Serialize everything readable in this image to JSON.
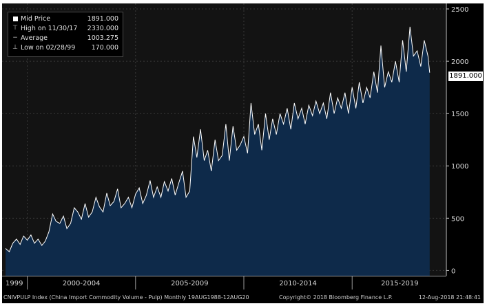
{
  "legend": {
    "rows": [
      {
        "icon": "square-swatch",
        "label": "Mid Price",
        "value": "1891.000"
      },
      {
        "icon": "high-marker",
        "label": "High on 11/30/17",
        "value": "2330.000"
      },
      {
        "icon": "average-marker",
        "label": "Average",
        "value": "1003.275"
      },
      {
        "icon": "low-marker",
        "label": "Low on 02/28/99",
        "value": "170.000"
      }
    ]
  },
  "last_price_tag": "1891.000",
  "footer": {
    "left": "CNIVPULP Index (China Import Commodity Volume - Pulp)  Monthly 19AUG1988-12AUG20",
    "center": "Copyright© 2018 Bloomberg Finance L.P.",
    "right": "12-Aug-2018 21:48:41"
  },
  "colors": {
    "area_fill": "#0e2a4a",
    "line": "#ffffff",
    "background": "#131313",
    "grid": "#3a3a3a"
  },
  "chart_data": {
    "type": "area",
    "title": "",
    "xlabel": "",
    "ylabel": "",
    "ylim": [
      -50,
      2500
    ],
    "xlim": [
      1998.9,
      2019.35
    ],
    "y_ticks": [
      0,
      500,
      1000,
      1500,
      2000,
      2500
    ],
    "y_tick_labels": [
      "0",
      "500",
      "1000",
      "1500",
      "2000",
      "2500"
    ],
    "x_tick_labels": [
      {
        "label": "1999",
        "x": 1999.4
      },
      {
        "label": "2000-2004",
        "x": 2002.5
      },
      {
        "label": "2005-2009",
        "x": 2007.5
      },
      {
        "label": "2010-2014",
        "x": 2012.5
      },
      {
        "label": "2015-2019",
        "x": 2017.2
      }
    ],
    "x_separators": [
      2000,
      2005,
      2010,
      2015
    ],
    "grid": true,
    "legend_position": "top-left",
    "series": [
      {
        "name": "Mid Price",
        "x": [
          1999.0,
          1999.17,
          1999.33,
          1999.5,
          1999.67,
          1999.83,
          2000.0,
          2000.17,
          2000.33,
          2000.5,
          2000.67,
          2000.83,
          2001.0,
          2001.17,
          2001.33,
          2001.5,
          2001.67,
          2001.83,
          2002.0,
          2002.17,
          2002.33,
          2002.5,
          2002.67,
          2002.83,
          2003.0,
          2003.17,
          2003.33,
          2003.5,
          2003.67,
          2003.83,
          2004.0,
          2004.17,
          2004.33,
          2004.5,
          2004.67,
          2004.83,
          2005.0,
          2005.17,
          2005.33,
          2005.5,
          2005.67,
          2005.83,
          2006.0,
          2006.17,
          2006.33,
          2006.5,
          2006.67,
          2006.83,
          2007.0,
          2007.17,
          2007.33,
          2007.5,
          2007.67,
          2007.83,
          2008.0,
          2008.17,
          2008.33,
          2008.5,
          2008.67,
          2008.83,
          2009.0,
          2009.17,
          2009.33,
          2009.5,
          2009.67,
          2009.83,
          2010.0,
          2010.17,
          2010.33,
          2010.5,
          2010.67,
          2010.83,
          2011.0,
          2011.17,
          2011.33,
          2011.5,
          2011.67,
          2011.83,
          2012.0,
          2012.17,
          2012.33,
          2012.5,
          2012.67,
          2012.83,
          2013.0,
          2013.17,
          2013.33,
          2013.5,
          2013.67,
          2013.83,
          2014.0,
          2014.17,
          2014.33,
          2014.5,
          2014.67,
          2014.83,
          2015.0,
          2015.17,
          2015.33,
          2015.5,
          2015.67,
          2015.83,
          2016.0,
          2016.17,
          2016.33,
          2016.5,
          2016.67,
          2016.83,
          2017.0,
          2017.17,
          2017.33,
          2017.5,
          2017.67,
          2017.83,
          2018.0,
          2018.17,
          2018.33,
          2018.5,
          2018.58
        ],
        "y": [
          210,
          180,
          260,
          300,
          250,
          330,
          290,
          340,
          260,
          300,
          240,
          280,
          370,
          540,
          470,
          450,
          520,
          400,
          450,
          600,
          560,
          490,
          640,
          510,
          560,
          700,
          610,
          560,
          740,
          620,
          660,
          780,
          600,
          640,
          700,
          600,
          730,
          790,
          640,
          720,
          860,
          700,
          800,
          700,
          850,
          760,
          880,
          720,
          840,
          950,
          700,
          760,
          1280,
          1080,
          1350,
          1050,
          1150,
          950,
          1250,
          1050,
          1100,
          1400,
          1050,
          1380,
          1150,
          1200,
          1280,
          1120,
          1600,
          1300,
          1400,
          1150,
          1500,
          1250,
          1450,
          1300,
          1500,
          1400,
          1550,
          1350,
          1600,
          1450,
          1550,
          1400,
          1580,
          1480,
          1620,
          1500,
          1600,
          1450,
          1700,
          1500,
          1650,
          1550,
          1700,
          1500,
          1750,
          1550,
          1800,
          1600,
          1750,
          1650,
          1900,
          1700,
          2150,
          1750,
          1900,
          1800,
          2000,
          1800,
          2200,
          1900,
          2330,
          2050,
          2100,
          1950,
          2200,
          2050,
          1891
        ]
      }
    ]
  }
}
